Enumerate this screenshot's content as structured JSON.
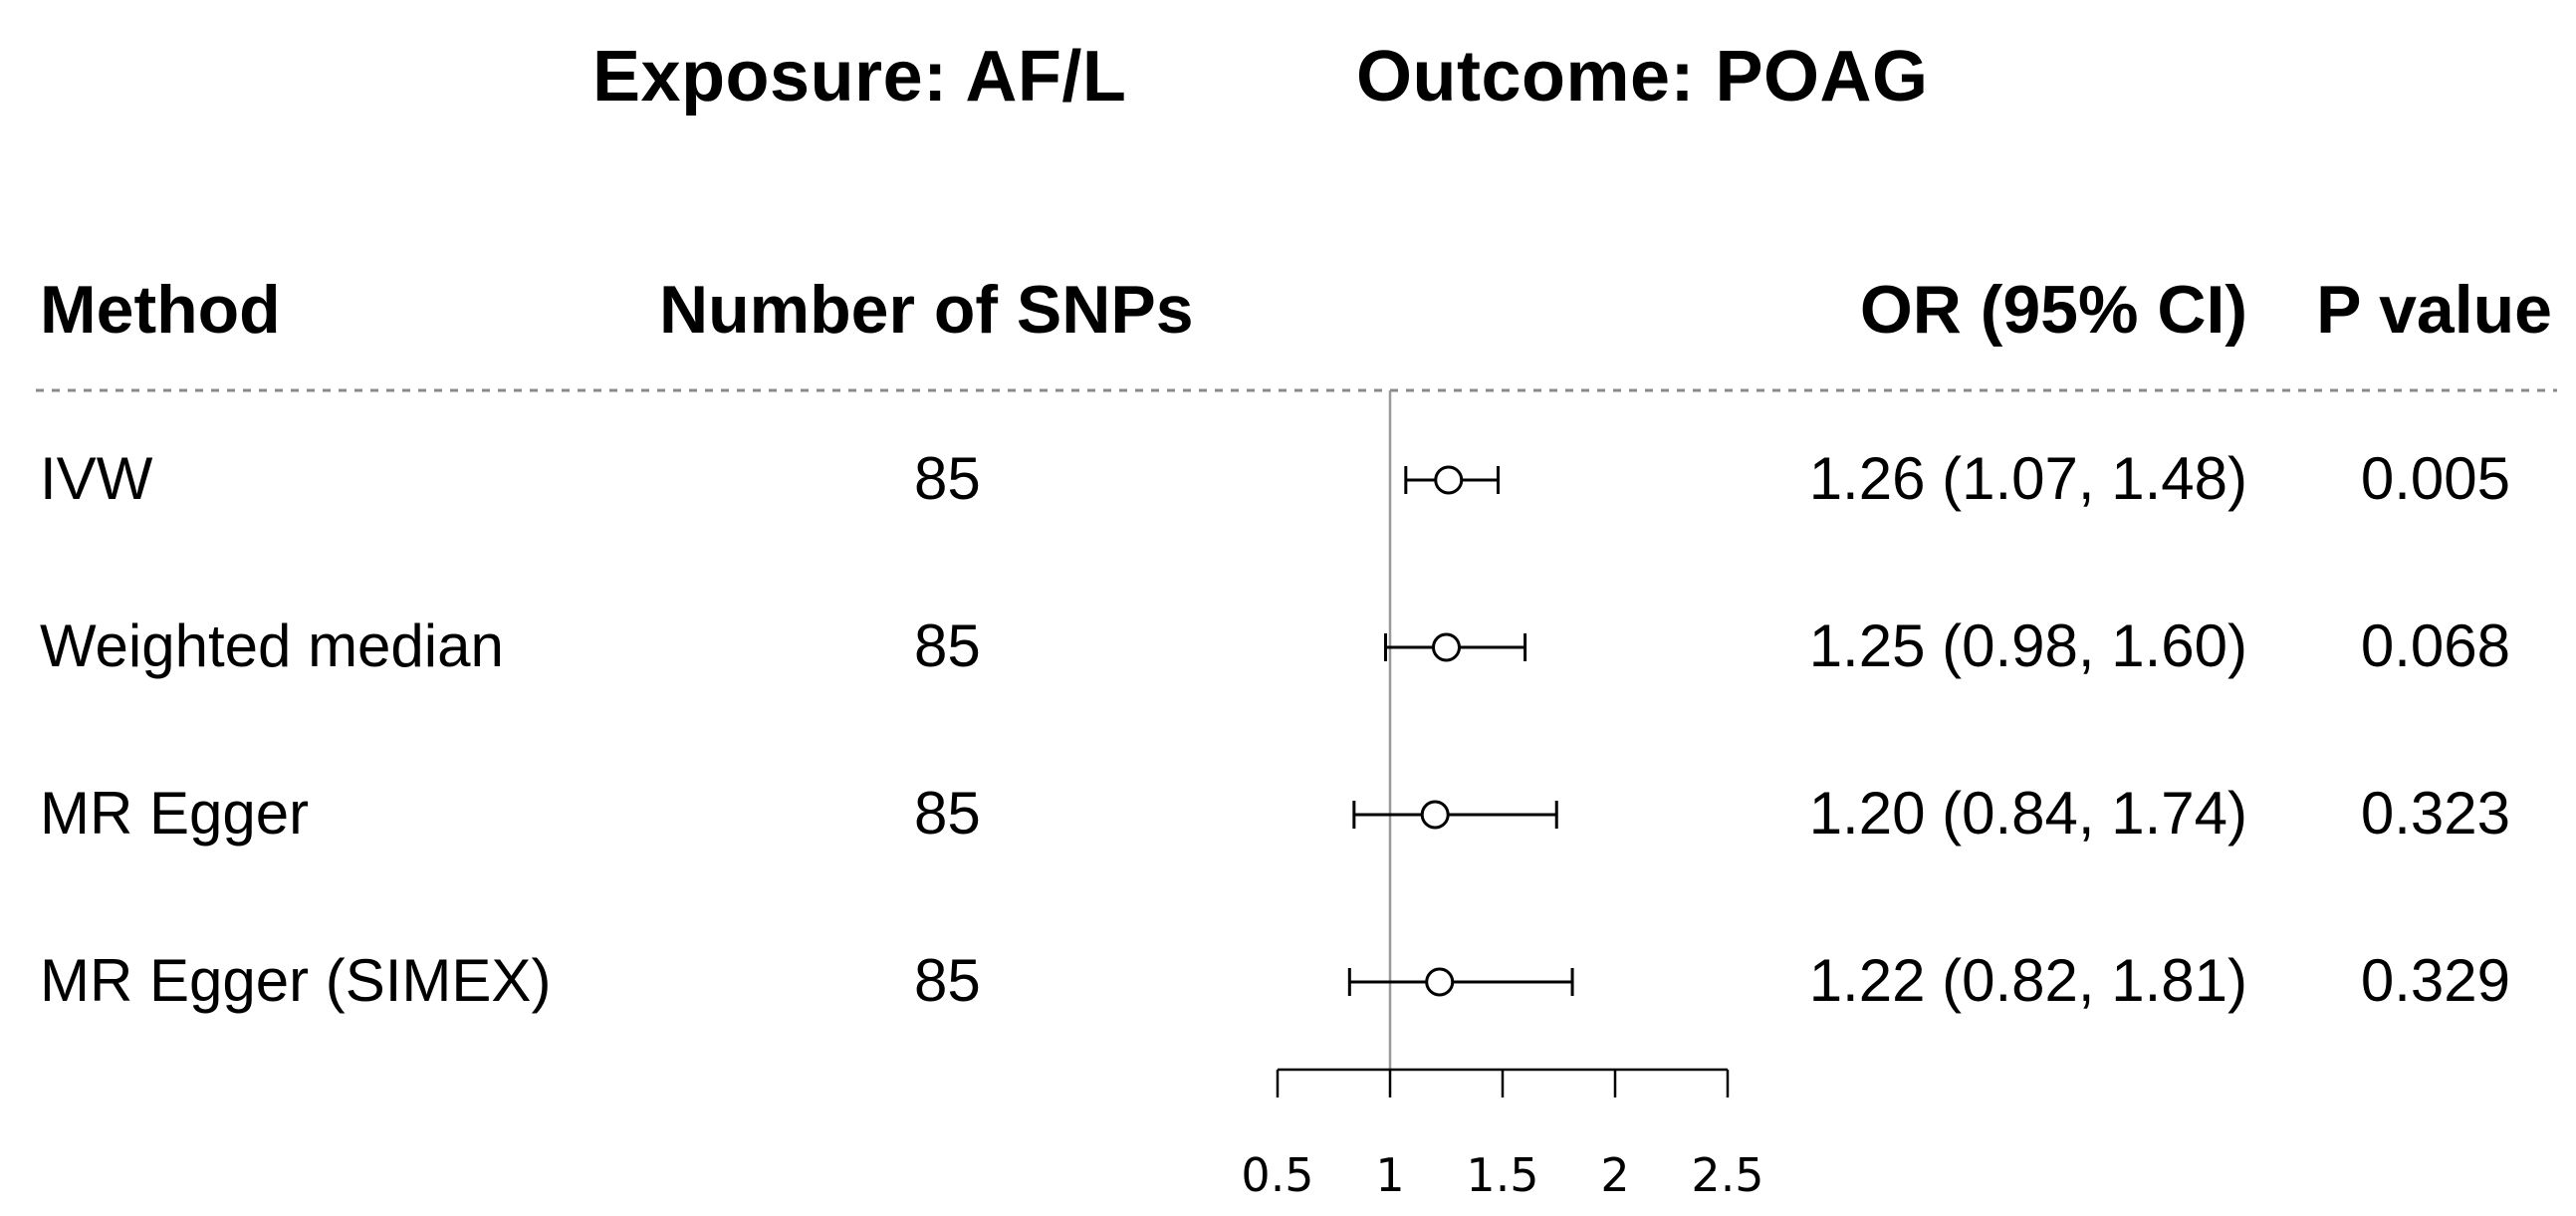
{
  "title": {
    "exposure": "Exposure: AF/L",
    "outcome": "Outcome: POAG"
  },
  "headers": {
    "method": "Method",
    "nsnp": "Number of SNPs",
    "or": "OR (95% CI)",
    "p": "P value"
  },
  "rows": [
    {
      "method": "IVW",
      "nsnp": "85",
      "or_text": "1.26 (1.07, 1.48)",
      "p": "0.005"
    },
    {
      "method": "Weighted median",
      "nsnp": "85",
      "or_text": "1.25 (0.98, 1.60)",
      "p": "0.068"
    },
    {
      "method": "MR Egger",
      "nsnp": "85",
      "or_text": "1.20 (0.84, 1.74)",
      "p": "0.323"
    },
    {
      "method": "MR Egger (SIMEX)",
      "nsnp": "85",
      "or_text": "1.22 (0.82, 1.81)",
      "p": "0.329"
    }
  ],
  "chart_data": {
    "type": "forest",
    "title": "Exposure: AF/L   Outcome: POAG",
    "xlabel": "",
    "ylabel": "",
    "xlim": [
      0.5,
      2.5
    ],
    "ticks": [
      0.5,
      1,
      1.5,
      2,
      2.5
    ],
    "tick_labels": [
      "0.5",
      "1",
      "1.5",
      "2",
      "2.5"
    ],
    "reference_line": 1,
    "categories": [
      "IVW",
      "Weighted median",
      "MR Egger",
      "MR Egger (SIMEX)"
    ],
    "series": [
      {
        "estimate": [
          1.26,
          1.25,
          1.2,
          1.22
        ],
        "lower": [
          1.07,
          0.98,
          0.84,
          0.82
        ],
        "upper": [
          1.48,
          1.6,
          1.74,
          1.81
        ]
      }
    ],
    "colors": {
      "ink": "#000000",
      "reference": "#9a9a9a",
      "divider": "#8a8a8a"
    }
  }
}
